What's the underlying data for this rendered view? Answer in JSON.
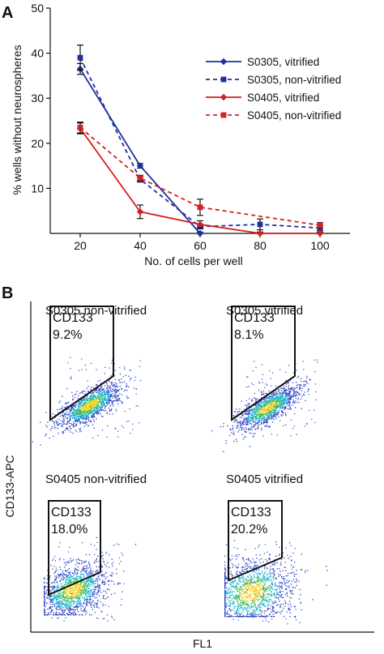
{
  "panel_a": {
    "label": "A",
    "chart_data": {
      "type": "line",
      "x": [
        20,
        40,
        60,
        80,
        100
      ],
      "xlabel": "No. of cells per well",
      "ylabel": "% wells without neurospheres",
      "xlim": [
        10,
        110
      ],
      "ylim": [
        0,
        50
      ],
      "xticks": [
        "20",
        "40",
        "60",
        "80",
        "100"
      ],
      "yticks": [
        "10",
        "20",
        "30",
        "40",
        "50"
      ],
      "legend_position": "top-right",
      "series": [
        {
          "name": "S0305, vitrified",
          "color": "#1f2fa0",
          "dashed": false,
          "marker": "diamond",
          "values": [
            36.5,
            15,
            0,
            null,
            null
          ],
          "errors": [
            1.2,
            0.5,
            0.3,
            0,
            0
          ]
        },
        {
          "name": "S0305, non-vitrified",
          "color": "#1f2fa0",
          "dashed": true,
          "marker": "square",
          "values": [
            39,
            12,
            1.5,
            2,
            1.2
          ],
          "errors": [
            2.8,
            0.6,
            0.5,
            1.2,
            0.6
          ]
        },
        {
          "name": "S0405, vitrified",
          "color": "#d42020",
          "dashed": false,
          "marker": "diamond",
          "values": [
            23.3,
            4.8,
            2,
            0,
            0
          ],
          "errors": [
            1.2,
            1.5,
            0.8,
            0.3,
            0.3
          ]
        },
        {
          "name": "S0405, non-vitrified",
          "color": "#d42020",
          "dashed": true,
          "marker": "square",
          "values": [
            23.5,
            12.3,
            5.8,
            null,
            1.8
          ],
          "errors": [
            1.2,
            0.6,
            1.8,
            0,
            0.6
          ]
        }
      ]
    }
  },
  "panel_b": {
    "label": "B",
    "ylabel": "CD133-APC",
    "xlabel": "FL1",
    "plots": [
      {
        "title": "S0305  non-vitrified",
        "gate_label": "CD133",
        "gate_value": "9.2%"
      },
      {
        "title": "S0305  vitrified",
        "gate_label": "CD133",
        "gate_value": "8.1%"
      },
      {
        "title": "S0405  non-vitrified",
        "gate_label": "CD133",
        "gate_value": "18.0%"
      },
      {
        "title": "S0405  vitrified",
        "gate_label": "CD133",
        "gate_value": "20.2%"
      }
    ]
  }
}
